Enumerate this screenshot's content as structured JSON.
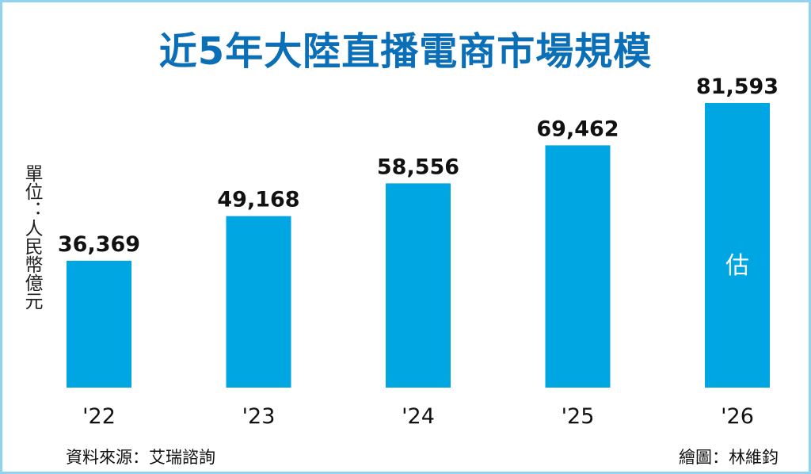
{
  "chart_data": {
    "type": "bar",
    "title": "近5年大陸直播電商市場規模",
    "ylabel": "單位：人民幣億元",
    "categories": [
      "'22",
      "'23",
      "'24",
      "'25",
      "'26"
    ],
    "values": [
      36369,
      49168,
      58556,
      69462,
      81593
    ],
    "value_labels": [
      "36,369",
      "49,168",
      "58,556",
      "69,462",
      "81,593"
    ],
    "bar_annotations": [
      "",
      "",
      "",
      "",
      "估"
    ],
    "ylim": [
      0,
      81593
    ],
    "grid": false,
    "legend": "none"
  },
  "colors": {
    "bar": "#00a6e2",
    "title": "#0a6fb7",
    "frame": "#8fd3f0"
  },
  "footer": {
    "source": "資料來源：艾瑞諮詢",
    "credit": "繪圖：林維鈞"
  }
}
